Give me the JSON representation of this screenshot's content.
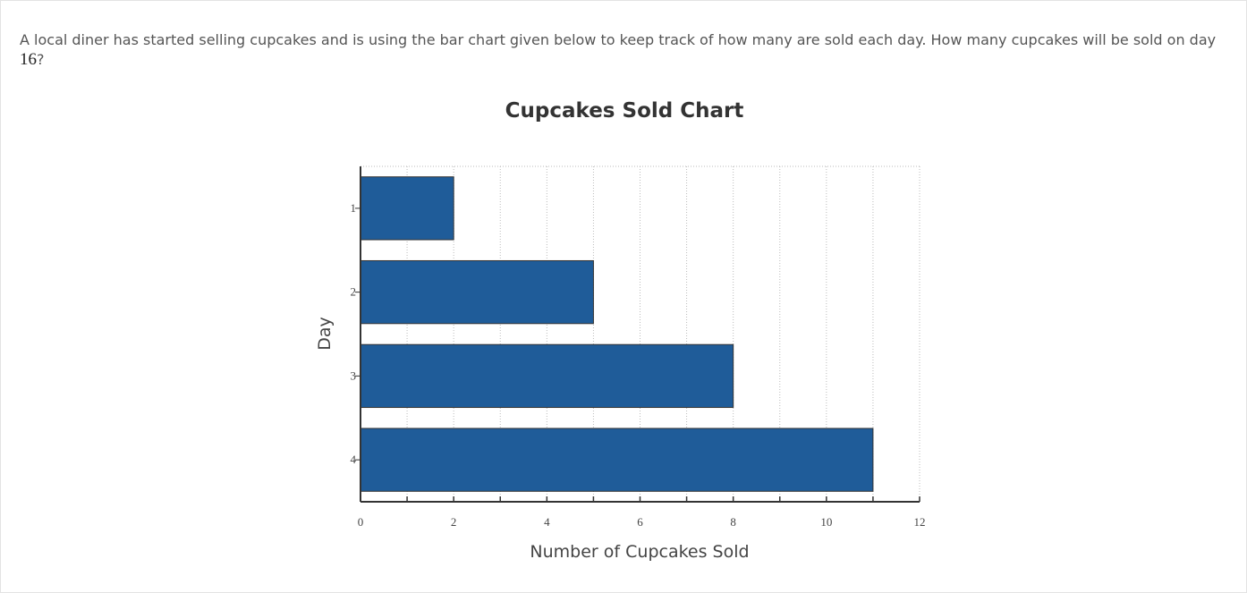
{
  "question": {
    "text": "A local diner has started selling cupcakes and is using the bar chart given below to keep track of how many are sold each day. How many cupcakes will be sold on day ",
    "math": "16",
    "suffix": "?"
  },
  "chart_data": {
    "type": "bar",
    "orientation": "horizontal",
    "title": "Cupcakes Sold Chart",
    "xlabel": "Number of Cupcakes Sold",
    "ylabel": "Day",
    "categories": [
      "1",
      "2",
      "3",
      "4"
    ],
    "values": [
      2,
      5,
      8,
      11
    ],
    "xlim": [
      0,
      12
    ],
    "xticks": [
      0,
      2,
      4,
      6,
      8,
      10,
      12
    ],
    "grid": true,
    "bar_color": "#1f5c99",
    "bar_edge_color": "#333333",
    "legend": "none"
  }
}
